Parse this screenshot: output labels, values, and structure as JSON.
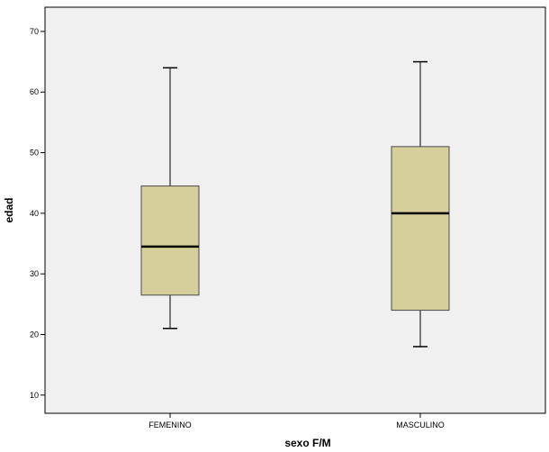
{
  "chart_data": {
    "type": "boxplot",
    "xlabel": "sexo F/M",
    "ylabel": "edad",
    "ylim": [
      7,
      74
    ],
    "yticks": [
      10,
      20,
      30,
      40,
      50,
      60,
      70
    ],
    "categories": [
      "FEMENINO",
      "MASCULINO"
    ],
    "boxes": [
      {
        "category": "FEMENINO",
        "min": 21,
        "q1": 26.5,
        "median": 34.5,
        "q3": 44.5,
        "max": 64
      },
      {
        "category": "MASCULINO",
        "min": 18,
        "q1": 24,
        "median": 40,
        "q3": 51,
        "max": 65
      }
    ],
    "grid": false,
    "colors": {
      "plot_background": "#f0f0f0",
      "box_fill": "#d6cf9c",
      "box_stroke": "#4a4a4a",
      "median": "#000000"
    }
  }
}
